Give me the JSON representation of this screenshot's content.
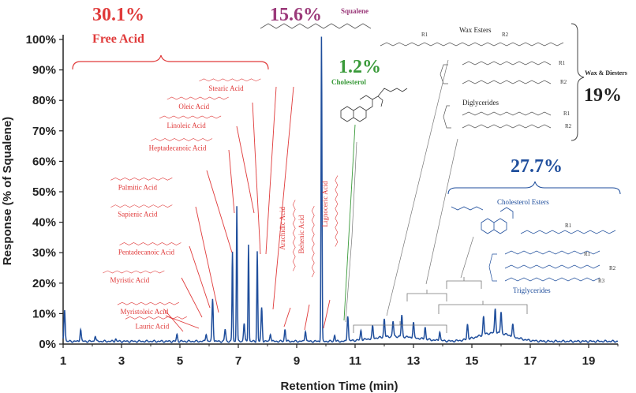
{
  "chart_data": {
    "type": "line",
    "title": "",
    "xlabel": "Retention Time (min)",
    "ylabel": "Response (% of Squalene)",
    "xlim": [
      1,
      20
    ],
    "ylim": [
      0,
      100
    ],
    "xticks": [
      "1",
      "3",
      "5",
      "7",
      "9",
      "11",
      "13",
      "15",
      "17",
      "19"
    ],
    "yticks": [
      "0%",
      "10%",
      "20%",
      "30%",
      "40%",
      "50%",
      "60%",
      "70%",
      "80%",
      "90%",
      "100%"
    ],
    "grid": false,
    "line_color": "#1f4e9c",
    "peaks": [
      {
        "x": 1.05,
        "y": 10.5
      },
      {
        "x": 1.6,
        "y": 4
      },
      {
        "x": 2.1,
        "y": 1.8
      },
      {
        "x": 2.8,
        "y": 0.8
      },
      {
        "x": 4.9,
        "y": 2.2
      },
      {
        "x": 5.9,
        "y": 2.5
      },
      {
        "x": 6.12,
        "y": 14
      },
      {
        "x": 6.55,
        "y": 4
      },
      {
        "x": 6.8,
        "y": 29.5
      },
      {
        "x": 6.95,
        "y": 44.5
      },
      {
        "x": 7.2,
        "y": 6
      },
      {
        "x": 7.35,
        "y": 32
      },
      {
        "x": 7.65,
        "y": 29.5
      },
      {
        "x": 7.8,
        "y": 11
      },
      {
        "x": 8.1,
        "y": 2.5
      },
      {
        "x": 8.6,
        "y": 4
      },
      {
        "x": 9.3,
        "y": 3.5
      },
      {
        "x": 9.85,
        "y": 100
      },
      {
        "x": 10.3,
        "y": 2
      },
      {
        "x": 10.75,
        "y": 8.5
      },
      {
        "x": 11.2,
        "y": 3
      },
      {
        "x": 11.6,
        "y": 4
      },
      {
        "x": 12.0,
        "y": 6
      },
      {
        "x": 12.3,
        "y": 5
      },
      {
        "x": 12.6,
        "y": 7
      },
      {
        "x": 13.0,
        "y": 5
      },
      {
        "x": 13.4,
        "y": 4
      },
      {
        "x": 13.9,
        "y": 3
      },
      {
        "x": 14.85,
        "y": 5
      },
      {
        "x": 15.4,
        "y": 6
      },
      {
        "x": 15.8,
        "y": 8
      },
      {
        "x": 16.0,
        "y": 7
      },
      {
        "x": 16.4,
        "y": 4
      }
    ],
    "annotations": {
      "free_acid": {
        "percent": "30.1%",
        "label": "Free  Acid",
        "color": "#e03a3a"
      },
      "squalene": {
        "percent": "15.6%",
        "label": "Squalene",
        "color": "#9b3a7a"
      },
      "cholesterol": {
        "percent": "1.2%",
        "label": "Cholesterol",
        "color": "#3a9a3a"
      },
      "wax_diesters": {
        "percent": "19%",
        "label": "Wax & Diesters",
        "color": "#222222"
      },
      "cholesterol_esters": {
        "percent": "27.7%",
        "label": "Cholesterol Esters",
        "color": "#1f4e9c"
      },
      "wax_esters": "Wax Esters",
      "diglycerides": "Diglycerides",
      "triglycerides": "Triglycerides"
    },
    "acid_labels": [
      {
        "name": "Lauric Acid",
        "x": 4.05,
        "y": 5.1
      },
      {
        "name": "Myristoleic Acid",
        "x": 3.78,
        "y": 9.8
      },
      {
        "name": "Myristic Acid",
        "x": 3.28,
        "y": 20.2
      },
      {
        "name": "Pentadecanoic Acid",
        "x": 3.85,
        "y": 29.4
      },
      {
        "name": "Sapienic Acid",
        "x": 3.55,
        "y": 41.8
      },
      {
        "name": "Palmitic Acid",
        "x": 3.55,
        "y": 50.7
      },
      {
        "name": "Heptadecanoic Acid",
        "x": 4.92,
        "y": 63.6
      },
      {
        "name": "Linoleic Acid",
        "x": 5.22,
        "y": 71
      },
      {
        "name": "Oleic Acid",
        "x": 5.48,
        "y": 77.2
      },
      {
        "name": "Stearic Acid",
        "x": 6.58,
        "y": 83.2
      },
      {
        "name": "Arachidic Acid",
        "x": 8.6,
        "y": 38
      },
      {
        "name": "Behenic Acid",
        "x": 9.25,
        "y": 36
      },
      {
        "name": "Lignoceric Acid",
        "x": 10.05,
        "y": 46
      }
    ],
    "group_labels": [
      "R1",
      "R2",
      "R3"
    ]
  }
}
